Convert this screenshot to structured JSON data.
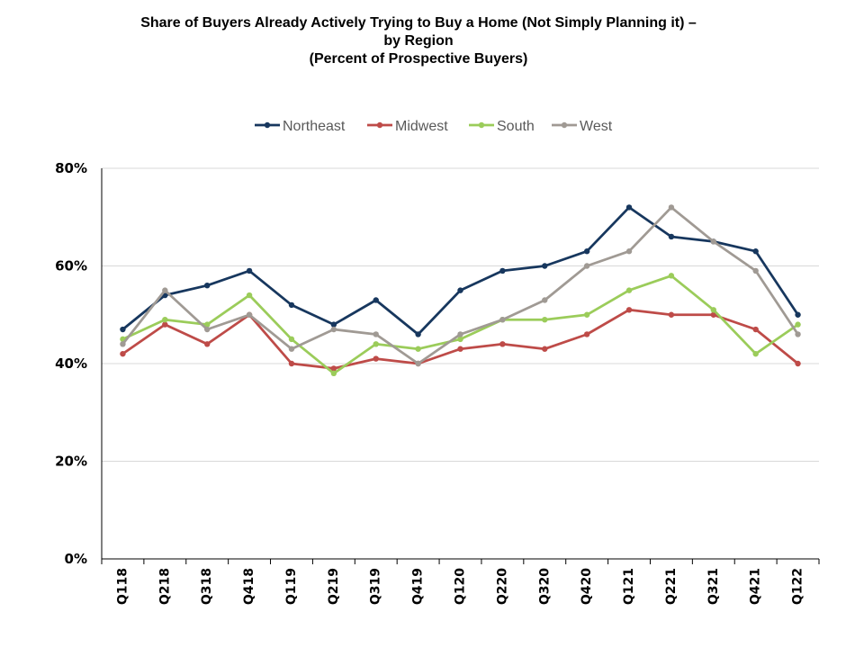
{
  "chart_data": {
    "type": "line",
    "title_lines": [
      "Share of Buyers Already Actively Trying to Buy a Home (Not Simply Planning it) –",
      "by Region",
      "(Percent of Prospective Buyers)"
    ],
    "categories": [
      "Q118",
      "Q218",
      "Q318",
      "Q418",
      "Q119",
      "Q219",
      "Q319",
      "Q419",
      "Q120",
      "Q220",
      "Q320",
      "Q420",
      "Q121",
      "Q221",
      "Q321",
      "Q421",
      "Q122"
    ],
    "series": [
      {
        "name": "Northeast",
        "color": "#17375e",
        "values": [
          47,
          54,
          56,
          59,
          52,
          48,
          53,
          46,
          55,
          59,
          60,
          63,
          72,
          66,
          65,
          63,
          50
        ]
      },
      {
        "name": "Midwest",
        "color": "#be4b48",
        "values": [
          42,
          48,
          44,
          50,
          40,
          39,
          41,
          40,
          43,
          44,
          43,
          46,
          51,
          50,
          50,
          47,
          40
        ]
      },
      {
        "name": "South",
        "color": "#9bcc5a",
        "values": [
          45,
          49,
          48,
          54,
          45,
          38,
          44,
          43,
          45,
          49,
          49,
          50,
          55,
          58,
          51,
          42,
          48
        ]
      },
      {
        "name": "West",
        "color": "#a09a94",
        "values": [
          44,
          55,
          47,
          50,
          43,
          47,
          46,
          40,
          46,
          49,
          53,
          60,
          63,
          72,
          65,
          59,
          46
        ]
      }
    ],
    "ylim": [
      0,
      80
    ],
    "yticks": [
      0,
      20,
      40,
      60,
      80
    ],
    "ytick_labels": [
      "0%",
      "20%",
      "40%",
      "60%",
      "80%"
    ],
    "grid": true,
    "legend_position": "top"
  }
}
